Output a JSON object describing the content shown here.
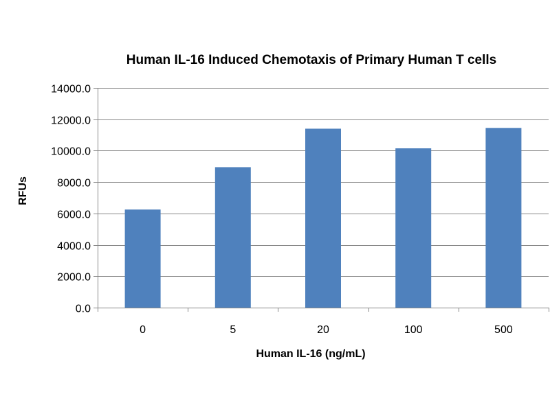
{
  "chart_data": {
    "type": "bar",
    "title": "Human IL-16 Induced Chemotaxis of Primary Human T cells",
    "xlabel": "Human IL-16 (ng/mL)",
    "ylabel": "RFUs",
    "categories": [
      "0",
      "5",
      "20",
      "100",
      "500"
    ],
    "values": [
      6250,
      8950,
      11400,
      10150,
      11450
    ],
    "ylim": [
      0,
      14000
    ],
    "yticks": [
      0,
      2000,
      4000,
      6000,
      8000,
      10000,
      12000,
      14000
    ],
    "ytick_labels": [
      "0.0",
      "2000.0",
      "4000.0",
      "6000.0",
      "8000.0",
      "10000.0",
      "12000.0",
      "14000.0"
    ],
    "grid": true,
    "legend": "none",
    "bar_color": "#4f81bd",
    "grid_color": "#868686",
    "axis_color": "#868686"
  }
}
